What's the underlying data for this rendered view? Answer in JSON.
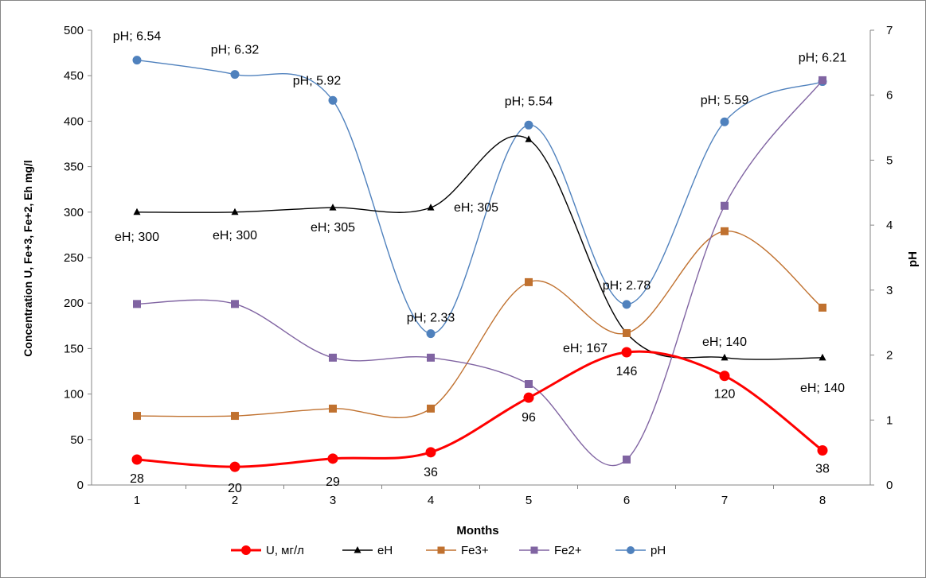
{
  "chart_data": {
    "type": "line",
    "x": [
      1,
      2,
      3,
      4,
      5,
      6,
      7,
      8
    ],
    "xlabel": "Months",
    "ylabel_left": "Concentration  U, Fe+3, Fe+2, Eh mg/l",
    "ylabel_right": "pH",
    "ylim_left": [
      0,
      500
    ],
    "yticks_left": [
      "0",
      "50",
      "100",
      "150",
      "200",
      "250",
      "300",
      "350",
      "400",
      "450",
      "500"
    ],
    "ylim_right": [
      0,
      7
    ],
    "yticks_right": [
      "0",
      "1",
      "2",
      "3",
      "4",
      "5",
      "6",
      "7"
    ],
    "xticks": [
      "1",
      "2",
      "3",
      "4",
      "5",
      "6",
      "7",
      "8"
    ],
    "grid": false,
    "legend_position": "bottom",
    "series": [
      {
        "name": "U, мг/л",
        "axis": "left",
        "color": "#ff0000",
        "marker": "circle",
        "values": [
          28,
          20,
          29,
          36,
          96,
          146,
          120,
          38
        ],
        "data_labels": [
          "28",
          "20",
          "29",
          "36",
          "96",
          "146",
          "120",
          "38"
        ]
      },
      {
        "name": "eH",
        "axis": "left",
        "color": "#000000",
        "marker": "triangle",
        "values": [
          300,
          300,
          305,
          305,
          380,
          167,
          140,
          140
        ],
        "data_labels": [
          "eH; 300",
          "eH; 300",
          "eH; 305",
          "eH; 305",
          "",
          "eH; 167",
          "eH; 140",
          "eH; 140"
        ]
      },
      {
        "name": "Fe3+",
        "axis": "left",
        "color": "#c0712f",
        "marker": "square",
        "values": [
          76,
          76,
          84,
          84,
          223,
          167,
          279,
          195
        ],
        "data_labels": []
      },
      {
        "name": "Fe2+",
        "axis": "left",
        "color": "#8064a2",
        "marker": "square",
        "values": [
          199,
          199,
          140,
          140,
          111,
          28,
          307,
          445
        ],
        "data_labels": []
      },
      {
        "name": "pH",
        "axis": "right",
        "color": "#4f81bd",
        "marker": "circle",
        "values": [
          6.54,
          6.32,
          5.92,
          2.33,
          5.54,
          2.78,
          5.59,
          6.21
        ],
        "data_labels": [
          "pH; 6.54",
          "pH; 6.32",
          "pH; 5.92",
          "pH; 2.33",
          "pH; 5.54",
          "pH; 2.78",
          "pH; 5.59",
          "pH; 6.21"
        ]
      }
    ]
  }
}
